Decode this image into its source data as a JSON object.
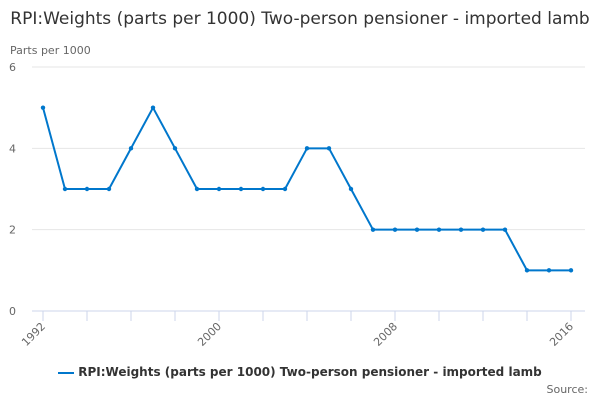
{
  "chart_data": {
    "type": "line",
    "title": "RPI:Weights (parts per 1000) Two-person pensioner - imported lamb",
    "ylabel": "Parts per 1000",
    "xlabel": "",
    "ylim": [
      0,
      6
    ],
    "yticks": [
      0,
      2,
      4,
      6
    ],
    "xlim": [
      1992,
      2016
    ],
    "xtick_labels": [
      "1992",
      "2000",
      "2008",
      "2016"
    ],
    "grid": true,
    "legend_position": "bottom",
    "color": "#0077cc",
    "x": [
      1992,
      1993,
      1994,
      1995,
      1996,
      1997,
      1998,
      1999,
      2000,
      2001,
      2002,
      2003,
      2004,
      2005,
      2006,
      2007,
      2008,
      2009,
      2010,
      2011,
      2012,
      2013,
      2014,
      2015,
      2016
    ],
    "series": [
      {
        "name": "RPI:Weights (parts per 1000) Two-person pensioner - imported lamb",
        "values": [
          5,
          3,
          3,
          3,
          4,
          5,
          4,
          3,
          3,
          3,
          3,
          3,
          4,
          4,
          3,
          2,
          2,
          2,
          2,
          2,
          2,
          2,
          1,
          1,
          1
        ]
      }
    ]
  },
  "source_label": "Source:"
}
